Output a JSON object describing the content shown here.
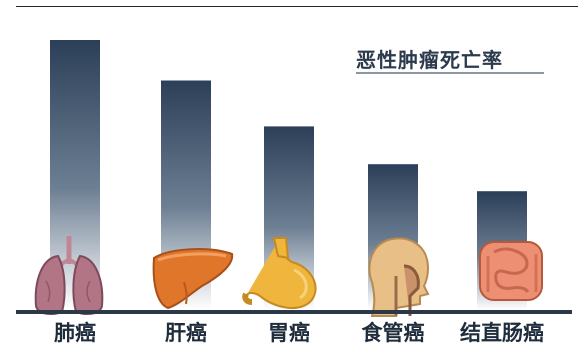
{
  "chart_data": {
    "type": "bar",
    "title": "恶性肿瘤死亡率",
    "xlabel": "",
    "ylabel": "",
    "categories": [
      "肺癌",
      "肝癌",
      "胃癌",
      "食管癌",
      "结直肠癌"
    ],
    "values": [
      100,
      85,
      68,
      54,
      44
    ],
    "ylim": [
      0,
      100
    ],
    "grid": false,
    "legend": "none",
    "bar_gradient": [
      "#2c3f58",
      "#ffffff"
    ],
    "colors": {
      "lung": "#b27586",
      "liver": "#e0762a",
      "stomach": "#efb53c",
      "esophagus": "#e8bf86",
      "colon": "#ec8f73",
      "baseline": "#2a3847"
    },
    "icons": [
      "lungs-icon",
      "liver-icon",
      "stomach-icon",
      "head-esophagus-icon",
      "intestine-icon"
    ]
  }
}
